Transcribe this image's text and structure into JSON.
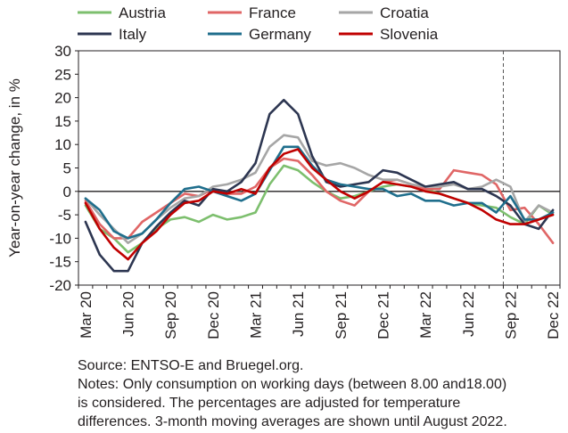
{
  "chart_data": {
    "type": "line",
    "ylabel": "Year-on-year change, in %",
    "xlabel": "",
    "ylim": [
      -20,
      30
    ],
    "yticks": [
      -20,
      -15,
      -10,
      -5,
      0,
      5,
      10,
      15,
      20,
      25,
      30
    ],
    "months": [
      "Mar 20",
      "Apr 20",
      "May 20",
      "Jun 20",
      "Jul 20",
      "Aug 20",
      "Sep 20",
      "Oct 20",
      "Nov 20",
      "Dec 20",
      "Jan 21",
      "Feb 21",
      "Mar 21",
      "Apr 21",
      "May 21",
      "Jun 21",
      "Jul 21",
      "Aug 21",
      "Sep 21",
      "Oct 21",
      "Nov 21",
      "Dec 21",
      "Jan 22",
      "Feb 22",
      "Mar 22",
      "Apr 22",
      "May 22",
      "Jun 22",
      "Jul 22",
      "Aug 22",
      "Sep 22",
      "Oct 22",
      "Nov 22",
      "Dec 22"
    ],
    "xtick_labels": [
      "Mar 20",
      "Jun 20",
      "Sep 20",
      "Dec 20",
      "Mar 21",
      "Jun 21",
      "Sep 21",
      "Dec 21",
      "Mar 22",
      "Jun 22",
      "Sep 22",
      "Dec 22"
    ],
    "xtick_month_index": [
      0,
      3,
      6,
      9,
      12,
      15,
      18,
      21,
      24,
      27,
      30,
      33
    ],
    "vline_month_index": 29.5,
    "grid": false,
    "legend_position": "top",
    "series": [
      {
        "name": "Austria",
        "color": "#7dbf6e",
        "values": [
          -3,
          -8,
          -10,
          -13,
          -11,
          -8,
          -6,
          -5.5,
          -6.5,
          -5,
          -6,
          -5.5,
          -4.5,
          1.5,
          5.5,
          4.5,
          2,
          0,
          -1.5,
          -1,
          0,
          1,
          1.5,
          1,
          0.5,
          -0.5,
          -1.5,
          -2.5,
          -3,
          -3.5,
          -5.5,
          -7,
          -3,
          -5
        ]
      },
      {
        "name": "France",
        "color": "#e06666",
        "values": [
          -2,
          -7,
          -10,
          -10,
          -6.5,
          -4.5,
          -2.5,
          -0.5,
          -1,
          0.5,
          -0.5,
          -0.5,
          1,
          5,
          7,
          6.5,
          3.5,
          0,
          -2,
          -3,
          0,
          2,
          2.5,
          1.5,
          0.5,
          0.5,
          4.5,
          4,
          3.5,
          1.5,
          -4,
          -3.5,
          -7,
          -11
        ]
      },
      {
        "name": "Croatia",
        "color": "#a6a6a6",
        "values": [
          -1.5,
          -5,
          -8,
          -11,
          -9,
          -6,
          -3.5,
          -1.5,
          -1,
          1,
          1.5,
          2.5,
          4,
          9.5,
          12,
          11.5,
          6.5,
          5.5,
          6,
          5,
          3.5,
          2.5,
          2.5,
          1.5,
          1,
          1,
          1.5,
          0.5,
          1,
          2.5,
          1,
          -6.5,
          -3,
          -4.5
        ]
      },
      {
        "name": "Italy",
        "color": "#2d3651",
        "values": [
          -6.5,
          -13.5,
          -17,
          -17,
          -11,
          -7.5,
          -4.5,
          -2,
          -3,
          0.5,
          0,
          2,
          6,
          16.5,
          19.5,
          16.5,
          7.5,
          2,
          1,
          1.5,
          2,
          4.5,
          4,
          2.5,
          1,
          1.5,
          2,
          0.5,
          0.5,
          -1,
          -3,
          -7,
          -8,
          -4
        ]
      },
      {
        "name": "Germany",
        "color": "#1f6e8c",
        "values": [
          -1.5,
          -4,
          -8.5,
          -10,
          -9,
          -6,
          -2.5,
          0.5,
          1,
          0,
          -1,
          -2,
          -0.5,
          4.5,
          9.5,
          9.5,
          5.5,
          2.5,
          1.5,
          1,
          0.5,
          0.5,
          -1,
          -0.5,
          -2,
          -2,
          -3,
          -2.5,
          -2.5,
          -4.5,
          -1,
          -6,
          -6,
          -4.5
        ]
      },
      {
        "name": "Slovenia",
        "color": "#c00000",
        "values": [
          -2.5,
          -8,
          -12,
          -14.5,
          -11,
          -8.5,
          -5,
          -2.5,
          -2,
          0,
          -0.5,
          0.5,
          -0.5,
          5,
          8,
          9,
          5,
          2.5,
          0,
          -1.5,
          0,
          2,
          1.5,
          1,
          0,
          -0.5,
          -1.5,
          -2.5,
          -4,
          -6,
          -7,
          -7,
          -6,
          -5
        ]
      }
    ]
  },
  "notes": {
    "line1": "Source: ENTSO-E and Bruegel.org.",
    "line2": "Notes: Only consumption on working days (between 8.00 and18.00)",
    "line3": "is considered. The percentages are adjusted for temperature",
    "line4": "differences. 3-month moving averages are shown until August 2022."
  }
}
